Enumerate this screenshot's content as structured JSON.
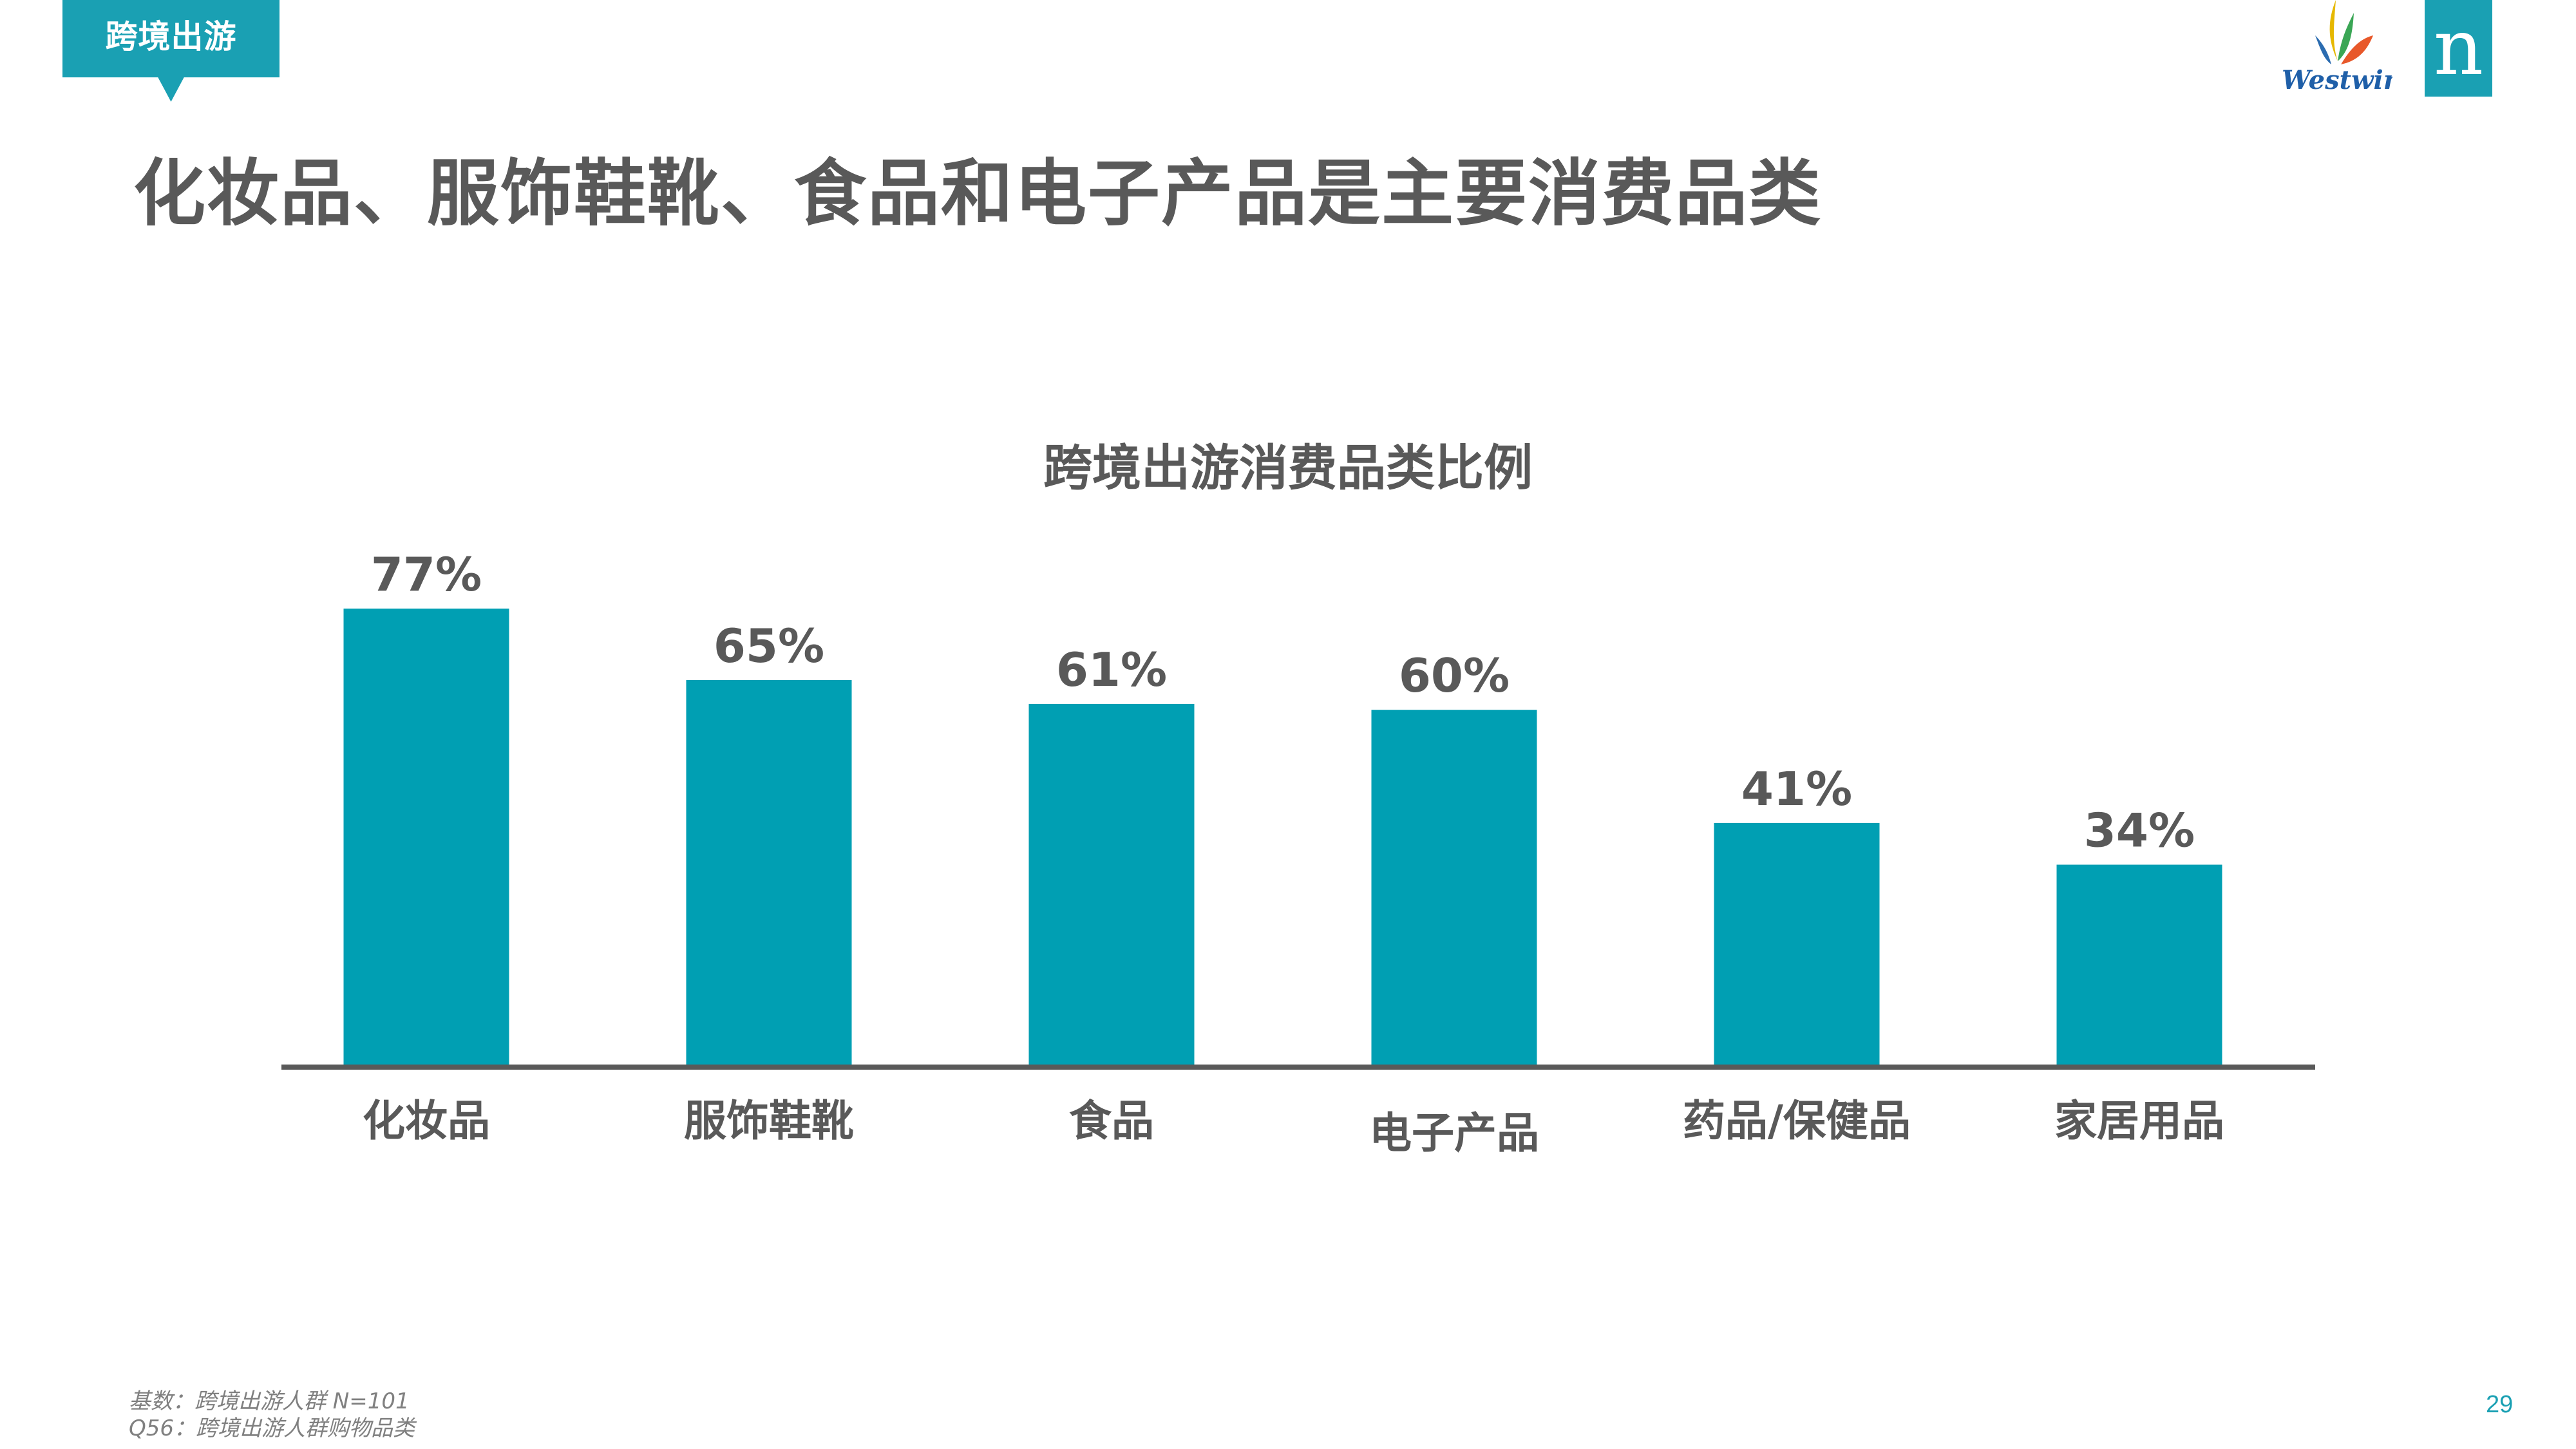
{
  "tag": {
    "label": "跨境出游"
  },
  "headline": "化妆品、服饰鞋靴、食品和电子产品是主要消费品类",
  "logos": {
    "westwin_text": "Westwin",
    "n_letter": "n"
  },
  "chart_data": {
    "type": "bar",
    "title": "跨境出游消费品类比例",
    "categories": [
      "化妆品",
      "服饰鞋靴",
      "食品",
      "电子产品",
      "药品/保健品",
      "家居用品"
    ],
    "values": [
      77,
      65,
      61,
      60,
      41,
      34
    ],
    "data_labels": [
      "77%",
      "65%",
      "61%",
      "60%",
      "41%",
      "34%"
    ],
    "unit": "%",
    "ylim": [
      0,
      100
    ],
    "grid": false,
    "legend": "none",
    "bar_color": "#009fb3"
  },
  "footer": {
    "base": "基数：跨境出游人群 N=101",
    "question": "Q56：跨境出游人群购物品类",
    "page_number": "29"
  },
  "colors": {
    "accent": "#1aa0b3",
    "text": "#595959"
  }
}
